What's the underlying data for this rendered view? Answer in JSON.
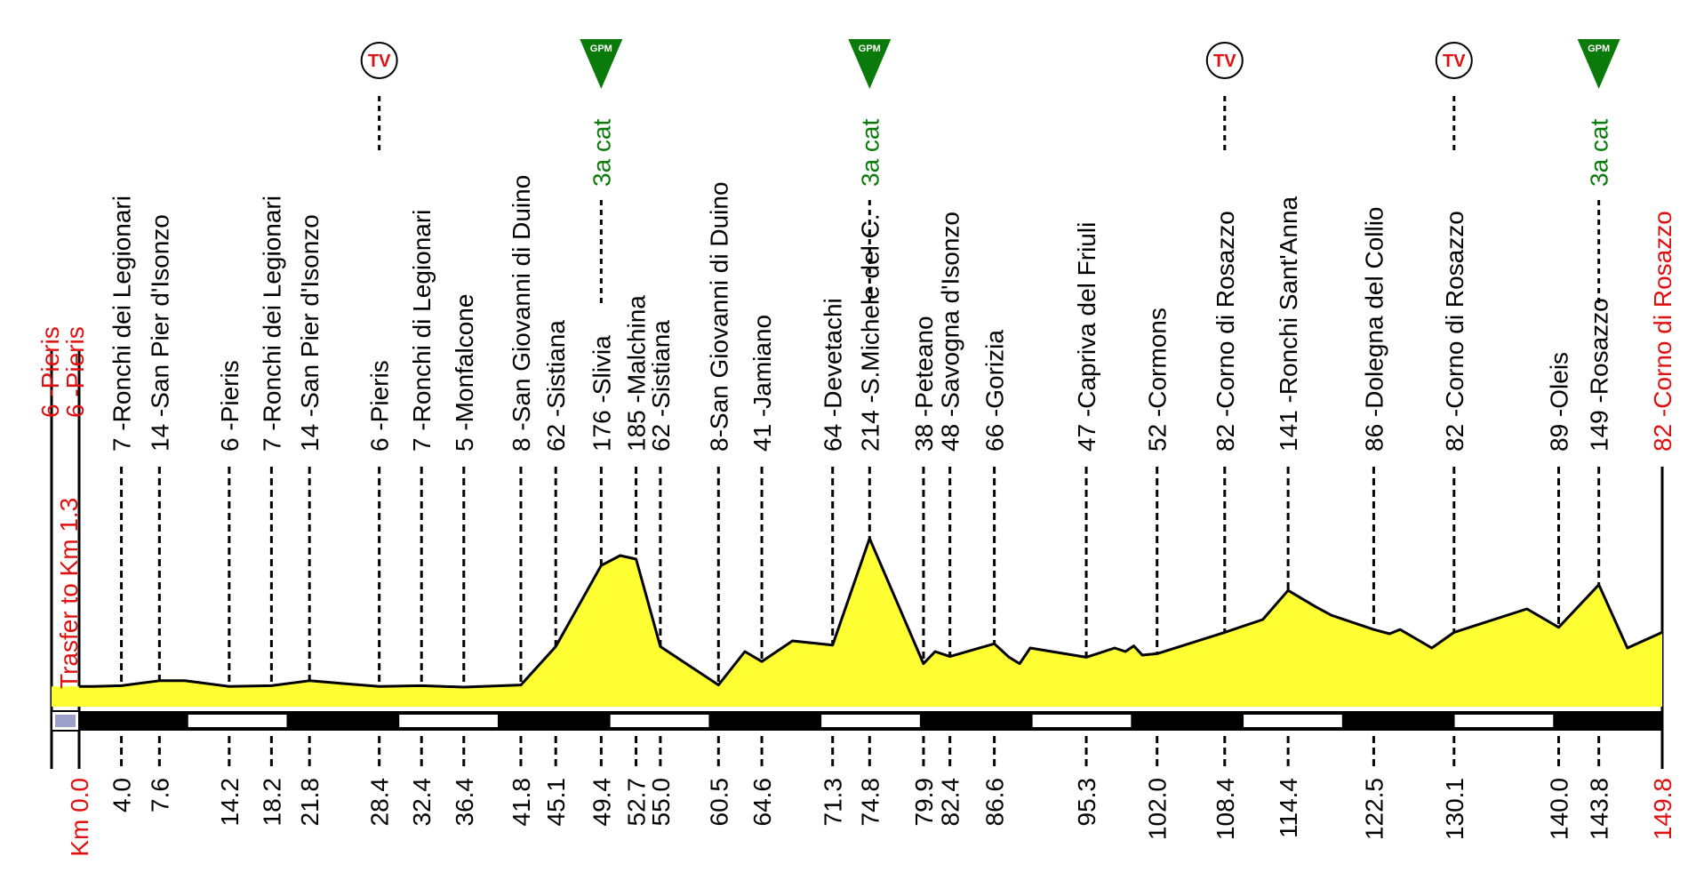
{
  "chart_data": {
    "type": "area",
    "title": "",
    "xlabel": "Km",
    "ylabel": "",
    "xlim": [
      0,
      149.8
    ],
    "ylim": [
      0,
      260
    ],
    "grid": false,
    "profile": [
      [
        0.0,
        6
      ],
      [
        1.3,
        6
      ],
      [
        4.0,
        7
      ],
      [
        7.6,
        14
      ],
      [
        10.0,
        14
      ],
      [
        14.2,
        6
      ],
      [
        18.2,
        7
      ],
      [
        21.8,
        14
      ],
      [
        25.0,
        10
      ],
      [
        28.4,
        6
      ],
      [
        32.4,
        7
      ],
      [
        36.4,
        5
      ],
      [
        41.8,
        8
      ],
      [
        45.1,
        62
      ],
      [
        49.4,
        176
      ],
      [
        51.2,
        190
      ],
      [
        52.7,
        185
      ],
      [
        55.0,
        62
      ],
      [
        60.5,
        8
      ],
      [
        63.0,
        55
      ],
      [
        64.6,
        41
      ],
      [
        67.5,
        70
      ],
      [
        71.3,
        64
      ],
      [
        74.8,
        214
      ],
      [
        79.9,
        38
      ],
      [
        81.0,
        55
      ],
      [
        82.4,
        48
      ],
      [
        86.6,
        66
      ],
      [
        88.0,
        47
      ],
      [
        89.0,
        38
      ],
      [
        90.0,
        60
      ],
      [
        95.3,
        47
      ],
      [
        98.0,
        60
      ],
      [
        99.0,
        55
      ],
      [
        99.8,
        63
      ],
      [
        100.6,
        50
      ],
      [
        102.0,
        52
      ],
      [
        108.4,
        82
      ],
      [
        112.0,
        100
      ],
      [
        114.4,
        141
      ],
      [
        117.0,
        118
      ],
      [
        118.5,
        106
      ],
      [
        122.5,
        86
      ],
      [
        124.0,
        80
      ],
      [
        125.0,
        86
      ],
      [
        128.0,
        60
      ],
      [
        130.1,
        82
      ],
      [
        137.0,
        115
      ],
      [
        140.0,
        89
      ],
      [
        143.8,
        149
      ],
      [
        146.5,
        60
      ],
      [
        149.8,
        82
      ]
    ],
    "km_ticks": [
      "Km 0.0",
      "4.0",
      "7.6",
      "14.2",
      "18.2",
      "21.8",
      "28.4",
      "32.4",
      "36.4",
      "41.8",
      "45.1",
      "49.4",
      "52.7",
      "55.0",
      "60.5",
      "64.6",
      "71.3",
      "74.8",
      "79.9",
      "82.4",
      "86.6",
      "95.3",
      "102.0",
      "108.4",
      "114.4",
      "122.5",
      "130.1",
      "140.0",
      "143.8",
      "149.8"
    ],
    "km_values": [
      0.0,
      4.0,
      7.6,
      14.2,
      18.2,
      21.8,
      28.4,
      32.4,
      36.4,
      41.8,
      45.1,
      49.4,
      52.7,
      55.0,
      60.5,
      64.6,
      71.3,
      74.8,
      79.9,
      82.4,
      86.6,
      95.3,
      102.0,
      108.4,
      114.4,
      122.5,
      130.1,
      140.0,
      143.8,
      149.8
    ],
    "locations": [
      {
        "km": 4.0,
        "label": "7 -Ronchi dei Legionari",
        "color": "black"
      },
      {
        "km": 7.6,
        "label": "14 -San Pier d'Isonzo",
        "color": "black"
      },
      {
        "km": 14.2,
        "label": "6 -Pieris",
        "color": "black"
      },
      {
        "km": 18.2,
        "label": "7 -Ronchi dei Legionari",
        "color": "black"
      },
      {
        "km": 21.8,
        "label": "14 -San Pier d'Isonzo",
        "color": "black"
      },
      {
        "km": 28.4,
        "label": "6 -Pieris",
        "color": "black"
      },
      {
        "km": 32.4,
        "label": "7 -Ronchi di Legionari",
        "color": "black"
      },
      {
        "km": 36.4,
        "label": "5 -Monfalcone",
        "color": "black"
      },
      {
        "km": 41.8,
        "label": "8 -San Giovanni di Duino",
        "color": "black"
      },
      {
        "km": 45.1,
        "label": "62 -Sistiana",
        "color": "black"
      },
      {
        "km": 49.4,
        "label": "176 -Slivia",
        "color": "black"
      },
      {
        "km": 52.7,
        "label": "185 -Malchina",
        "color": "black"
      },
      {
        "km": 55.0,
        "label": "62 -Sistiana",
        "color": "black"
      },
      {
        "km": 60.5,
        "label": "8-San Giovanni di Duino",
        "color": "black"
      },
      {
        "km": 64.6,
        "label": "41 -Jamiano",
        "color": "black"
      },
      {
        "km": 71.3,
        "label": "64 -Devetachi",
        "color": "black"
      },
      {
        "km": 74.8,
        "label": "214 -S.Michele del C.",
        "color": "black"
      },
      {
        "km": 79.9,
        "label": "38 -Peteano",
        "color": "black"
      },
      {
        "km": 82.4,
        "label": "48 -Savogna d'Isonzo",
        "color": "black"
      },
      {
        "km": 86.6,
        "label": "66 -Gorizia",
        "color": "black"
      },
      {
        "km": 95.3,
        "label": "47 -Capriva del Friuli",
        "color": "black"
      },
      {
        "km": 102.0,
        "label": "52 -Cormons",
        "color": "black"
      },
      {
        "km": 108.4,
        "label": "82 -Corno di Rosazzo",
        "color": "black"
      },
      {
        "km": 114.4,
        "label": "141 -Ronchi Sant'Anna",
        "color": "black"
      },
      {
        "km": 122.5,
        "label": "86 -Dolegna del Collio",
        "color": "black"
      },
      {
        "km": 130.1,
        "label": "82 -Corno di Rosazzo",
        "color": "black"
      },
      {
        "km": 140.0,
        "label": "89 -Oleis",
        "color": "black"
      },
      {
        "km": 143.8,
        "label": "149 -Rosazzo",
        "color": "black"
      },
      {
        "km": 149.8,
        "label": "82 -Corno di Rosazzo",
        "color": "red"
      }
    ],
    "start_labels": [
      "6 -Pieris",
      "6 -Pieris"
    ],
    "transfer_label": "Trasfer to Km 1.3",
    "climbs": [
      {
        "km": 49.4,
        "label": "3a cat",
        "marker": "GPM"
      },
      {
        "km": 74.8,
        "label": "3a cat",
        "marker": "GPM"
      },
      {
        "km": 143.8,
        "label": "3a cat",
        "marker": "GPM"
      }
    ],
    "tv_points": [
      {
        "km": 28.4,
        "marker": "TV"
      },
      {
        "km": 108.4,
        "marker": "TV"
      },
      {
        "km": 130.1,
        "marker": "TV"
      }
    ]
  },
  "colors": {
    "fill": "#ffff33",
    "line": "#000000",
    "red": "#e01010",
    "green": "#0a7a0a",
    "bar_dark": "#000000",
    "bar_light": "#ffffff"
  }
}
